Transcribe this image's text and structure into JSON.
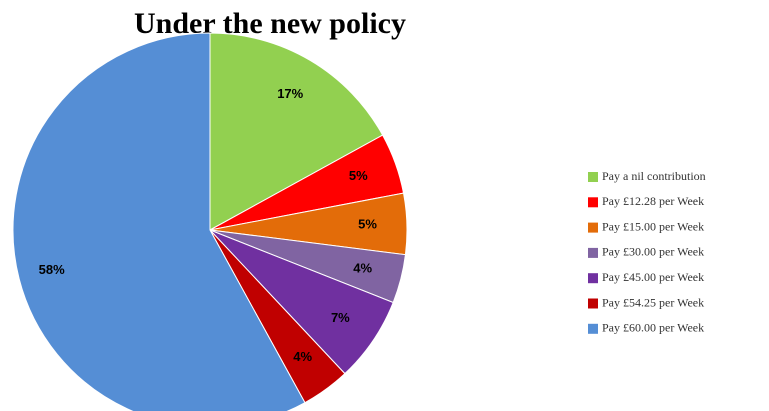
{
  "chart_data": {
    "type": "pie",
    "title": "Under the new policy",
    "categories": [
      "Pay a nil contribution",
      "Pay £12.28 per Week",
      "Pay £15.00 per Week",
      "Pay £30.00 per Week",
      "Pay £45.00 per Week",
      "Pay £54.25 per Week",
      "Pay £60.00 per Week"
    ],
    "values": [
      17,
      5,
      5,
      4,
      7,
      4,
      58
    ],
    "value_labels": [
      "17%",
      "5%",
      "5%",
      "4%",
      "7%",
      "4%",
      "58%"
    ],
    "colors": [
      "#92d050",
      "#ff0000",
      "#e36c09",
      "#8064a2",
      "#7030a0",
      "#c00000",
      "#558ed5"
    ],
    "legend": "right"
  }
}
